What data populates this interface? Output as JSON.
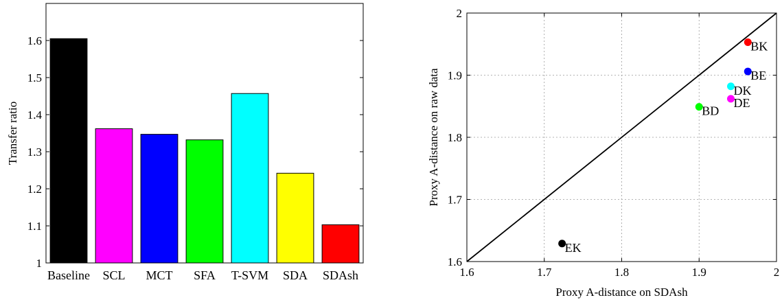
{
  "chart_data": [
    {
      "type": "bar",
      "title": "",
      "xlabel": "",
      "ylabel": "Transfer ratio",
      "ylim": [
        1,
        1.7
      ],
      "yticks": [
        1,
        1.1,
        1.2,
        1.3,
        1.4,
        1.5,
        1.6
      ],
      "ytick_labels": [
        "1",
        "1.1",
        "1.2",
        "1.3",
        "1.4",
        "1.5",
        "1.6"
      ],
      "grid": false,
      "categories": [
        "Baseline",
        "SCL",
        "MCT",
        "SFA",
        "T-SVM",
        "SDA",
        "SDAsh"
      ],
      "values": [
        1.605,
        1.362,
        1.347,
        1.332,
        1.457,
        1.242,
        1.103
      ],
      "colors": [
        "#000000",
        "#ff00ff",
        "#0000ff",
        "#00ff00",
        "#00ffff",
        "#ffff00",
        "#ff0000"
      ]
    },
    {
      "type": "scatter",
      "title": "",
      "xlabel": "Proxy A-distance on SDAsh",
      "ylabel": "Proxy A-distance on raw data",
      "xlim": [
        1.6,
        2
      ],
      "ylim": [
        1.6,
        2
      ],
      "xticks": [
        1.6,
        1.7,
        1.8,
        1.9,
        2
      ],
      "xtick_labels": [
        "1.6",
        "1.7",
        "1.8",
        "1.9",
        "2"
      ],
      "yticks": [
        1.6,
        1.7,
        1.8,
        1.9,
        2
      ],
      "ytick_labels": [
        "1.6",
        "1.7",
        "1.8",
        "1.9",
        "2"
      ],
      "grid": true,
      "diagonal_line": true,
      "points": [
        {
          "label": "BK",
          "x": 1.963,
          "y": 1.953,
          "color": "#ff0000"
        },
        {
          "label": "BE",
          "x": 1.963,
          "y": 1.906,
          "color": "#0000ff"
        },
        {
          "label": "DK",
          "x": 1.941,
          "y": 1.882,
          "color": "#00ffff"
        },
        {
          "label": "DE",
          "x": 1.941,
          "y": 1.862,
          "color": "#ff00ff"
        },
        {
          "label": "BD",
          "x": 1.9,
          "y": 1.849,
          "color": "#00ff00"
        },
        {
          "label": "EK",
          "x": 1.723,
          "y": 1.629,
          "color": "#000000"
        }
      ]
    }
  ]
}
